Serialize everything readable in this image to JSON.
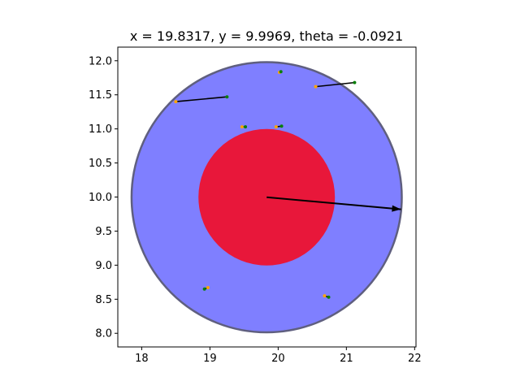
{
  "chart_data": {
    "type": "scatter",
    "title": "x = 19.8317, y = 9.9969, theta = -0.0921",
    "xlabel": "",
    "ylabel": "",
    "xlim": [
      17.65,
      22.02
    ],
    "ylim": [
      7.8,
      12.2
    ],
    "x_ticks": [
      "18",
      "19",
      "20",
      "21",
      "22"
    ],
    "y_ticks": [
      "8.0",
      "8.5",
      "9.0",
      "9.5",
      "10.0",
      "10.5",
      "11.0",
      "11.5",
      "12.0"
    ],
    "grid": false,
    "outer_disk": {
      "cx": 19.8317,
      "cy": 9.9969,
      "r": 1.98,
      "fill": "#7f7fff",
      "edge": "#5f5f7f"
    },
    "inner_disk": {
      "cx": 19.8317,
      "cy": 9.9969,
      "r": 1.0,
      "fill": "#e8173a"
    },
    "heading": {
      "x1": 19.8317,
      "y1": 9.9969,
      "x2": 21.8,
      "y2": 9.82,
      "color": "#000000"
    },
    "particles": [
      {
        "x1": 18.5,
        "y1": 11.4,
        "x2": 19.25,
        "y2": 11.47
      },
      {
        "x1": 20.55,
        "y1": 11.62,
        "x2": 21.12,
        "y2": 11.68
      },
      {
        "x1": 20.02,
        "y1": 11.83,
        "x2": 20.04,
        "y2": 11.84
      },
      {
        "x1": 19.47,
        "y1": 11.03,
        "x2": 19.52,
        "y2": 11.03
      },
      {
        "x1": 19.97,
        "y1": 11.03,
        "x2": 20.05,
        "y2": 11.04
      },
      {
        "x1": 18.97,
        "y1": 8.67,
        "x2": 18.92,
        "y2": 8.65
      },
      {
        "x1": 20.68,
        "y1": 8.55,
        "x2": 20.74,
        "y2": 8.53
      }
    ],
    "colors": {
      "start_point": "#ffa500",
      "end_point": "#0a7f0a",
      "line": "#000000"
    }
  }
}
